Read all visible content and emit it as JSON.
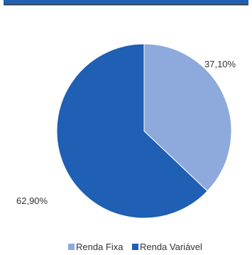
{
  "chart_data": {
    "type": "pie",
    "title": "",
    "series": [
      {
        "name": "Renda Fixa",
        "value": 37.1,
        "label": "37,10%",
        "color": "#8eaadc"
      },
      {
        "name": "Renda Variável",
        "value": 62.9,
        "label": "62,90%",
        "color": "#1f5fb4"
      }
    ],
    "legend_position": "bottom",
    "start_angle": "12 o'clock",
    "direction": "clockwise"
  },
  "colors": {
    "top_banner": "#1f5fb4",
    "top_rule": "#333333",
    "background": "#ffffff"
  }
}
